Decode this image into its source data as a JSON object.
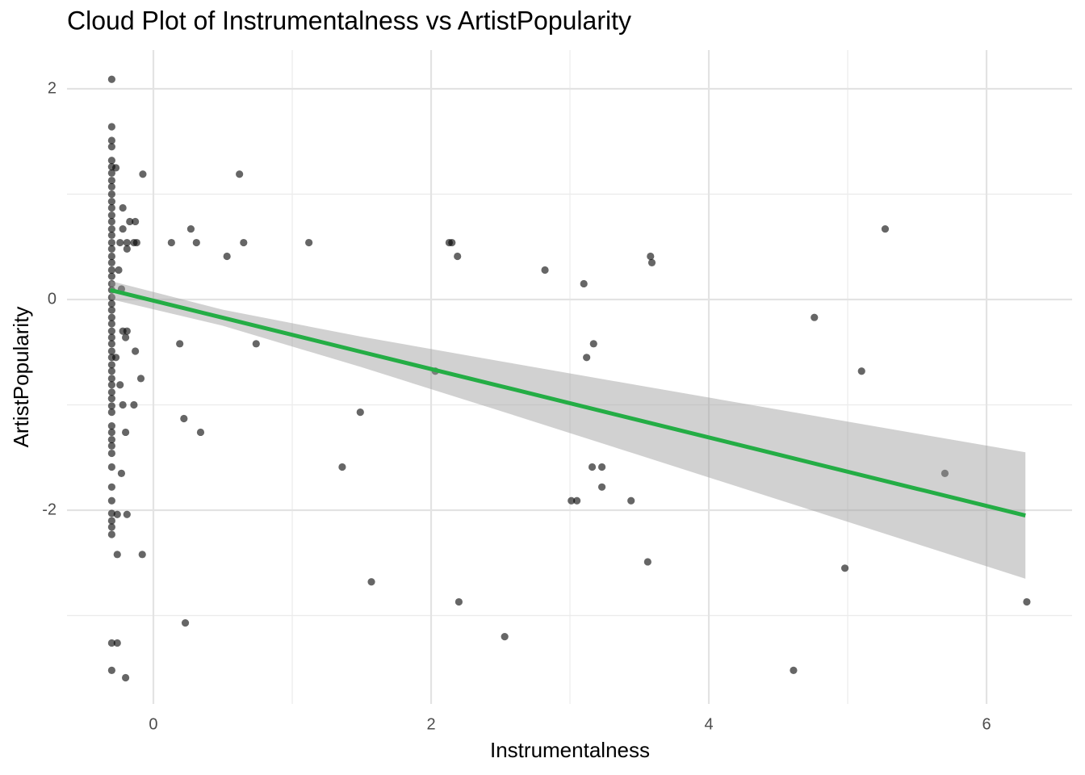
{
  "chart_data": {
    "type": "scatter",
    "title": "Cloud Plot of Instrumentalness vs ArtistPopularity",
    "x_label": "Instrumentalness",
    "y_label": "ArtistPopularity",
    "xlim": [
      -0.622,
      6.616
    ],
    "ylim": [
      -3.839,
      2.368
    ],
    "xticks": [
      0,
      2,
      4,
      6
    ],
    "yticks": [
      -2,
      0,
      2
    ],
    "x_minor_ticks": [
      1,
      3,
      5
    ],
    "y_minor_ticks": [
      -3,
      -1,
      1
    ],
    "grid": true,
    "color": "#000000",
    "x": [
      -0.3,
      -0.3,
      -0.3,
      -0.3,
      -0.3,
      -0.3,
      -0.3,
      -0.3,
      -0.3,
      -0.3,
      -0.3,
      -0.3,
      -0.3,
      -0.3,
      -0.3,
      -0.3,
      -0.3,
      -0.3,
      -0.3,
      -0.3,
      -0.3,
      -0.3,
      -0.3,
      -0.3,
      -0.3,
      -0.3,
      -0.3,
      -0.3,
      -0.3,
      -0.3,
      -0.3,
      -0.3,
      -0.3,
      -0.3,
      -0.3,
      -0.3,
      -0.3,
      -0.3,
      -0.3,
      -0.3,
      -0.3,
      -0.3,
      -0.3,
      -0.3,
      -0.3,
      -0.3,
      -0.3,
      -0.3,
      -0.3,
      -0.3,
      -0.3,
      -0.3,
      -0.3,
      -0.3,
      -0.3,
      -0.3,
      -0.076,
      -0.27,
      -0.22,
      -0.13,
      -0.17,
      -0.22,
      -0.24,
      -0.19,
      -0.14,
      -0.12,
      -0.19,
      -0.25,
      -0.23,
      -0.22,
      -0.19,
      -0.2,
      -0.13,
      -0.27,
      -0.09,
      -0.24,
      -0.22,
      -0.14,
      -0.2,
      -0.23,
      -0.26,
      -0.19,
      -0.26,
      -0.08,
      -0.26,
      -0.2,
      0.13,
      0.27,
      0.31,
      0.62,
      0.53,
      0.65,
      1.12,
      0.19,
      0.74,
      0.22,
      0.34,
      0.23,
      1.49,
      1.36,
      1.57,
      2.03,
      2.13,
      2.15,
      2.19,
      2.2,
      2.53,
      2.82,
      3.1,
      3.12,
      3.17,
      3.16,
      3.23,
      3.23,
      3.01,
      3.05,
      3.44,
      3.58,
      3.59,
      3.56,
      4.61,
      4.76,
      4.98,
      5.1,
      5.27,
      5.7,
      6.29
    ],
    "values": [
      2.09,
      1.64,
      1.51,
      1.45,
      1.32,
      1.26,
      1.2,
      1.13,
      1.07,
      1.0,
      0.93,
      0.87,
      0.8,
      0.74,
      0.67,
      0.61,
      0.54,
      0.48,
      0.41,
      0.35,
      0.28,
      0.22,
      0.15,
      0.09,
      0.02,
      -0.04,
      -0.1,
      -0.17,
      -0.23,
      -0.3,
      -0.36,
      -0.42,
      -0.49,
      -0.55,
      -0.62,
      -0.68,
      -0.75,
      -0.81,
      -0.88,
      -0.94,
      -1.01,
      -1.07,
      -1.2,
      -1.26,
      -1.33,
      -1.39,
      -1.46,
      -1.59,
      -1.78,
      -1.91,
      -2.03,
      -2.1,
      -2.16,
      -2.23,
      -3.26,
      -3.52,
      1.19,
      1.25,
      0.87,
      0.74,
      0.74,
      0.67,
      0.54,
      0.54,
      0.54,
      0.54,
      0.48,
      0.28,
      0.1,
      -0.3,
      -0.3,
      -0.36,
      -0.49,
      -0.55,
      -0.75,
      -0.81,
      -1.0,
      -1.0,
      -1.26,
      -1.65,
      -2.04,
      -2.04,
      -2.42,
      -2.42,
      -3.26,
      -3.59,
      0.54,
      0.67,
      0.54,
      1.19,
      0.41,
      0.54,
      0.54,
      -0.42,
      -0.42,
      -1.13,
      -1.26,
      -3.07,
      -1.07,
      -1.59,
      -2.68,
      -0.68,
      0.54,
      0.54,
      0.41,
      -2.87,
      -3.2,
      0.28,
      0.15,
      -0.55,
      -0.42,
      -1.59,
      -1.59,
      -1.78,
      -1.91,
      -1.91,
      -1.91,
      0.41,
      0.35,
      -2.49,
      -3.52,
      -0.17,
      -2.55,
      -0.68,
      0.67,
      -1.65,
      -2.87
    ],
    "fit": {
      "color": "#24ad45",
      "band_color": "#999999",
      "x": [
        -0.31,
        0.5,
        1.5,
        2.5,
        3.5,
        4.5,
        5.5,
        6.28
      ],
      "values": [
        0.09,
        -0.173,
        -0.498,
        -0.822,
        -1.147,
        -1.472,
        -1.797,
        -2.05
      ],
      "upper": [
        0.176,
        -0.097,
        -0.353,
        -0.586,
        -0.816,
        -1.045,
        -1.273,
        -1.45
      ],
      "lower": [
        0.004,
        -0.249,
        -0.643,
        -1.058,
        -1.478,
        -1.899,
        -2.321,
        -2.65
      ]
    }
  }
}
